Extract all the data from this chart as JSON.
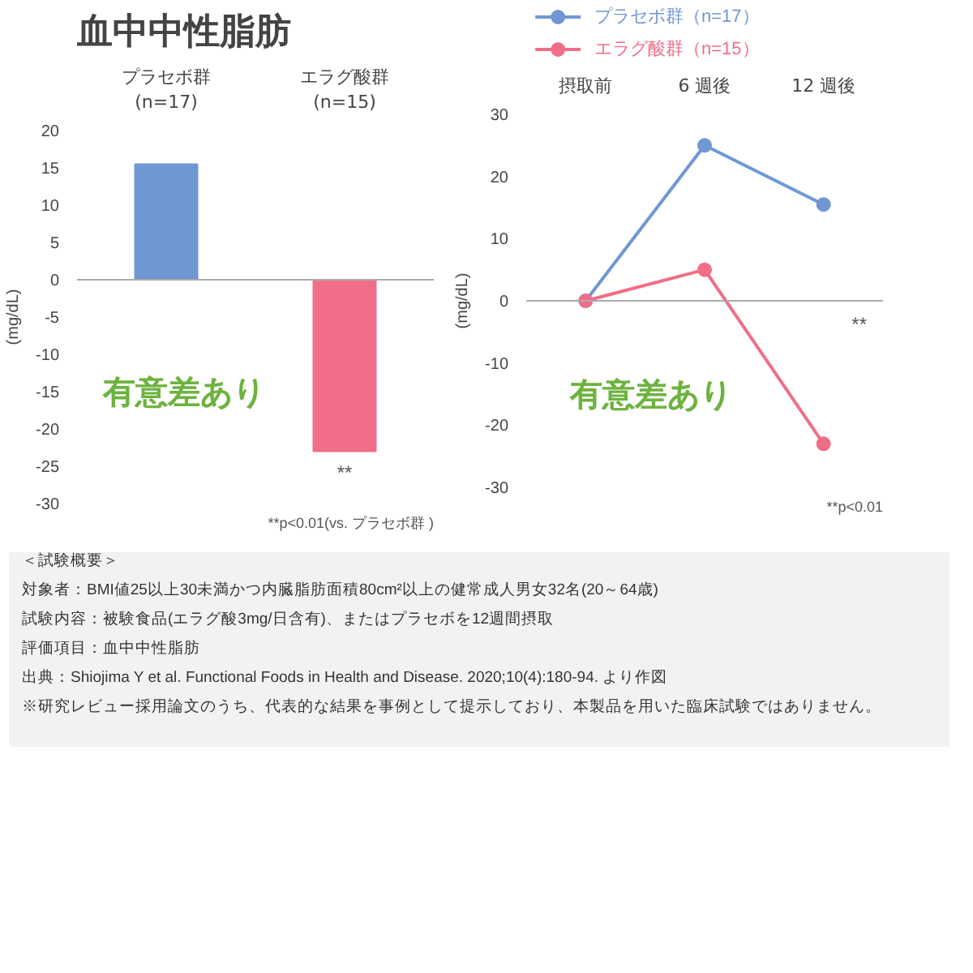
{
  "chart_data": [
    {
      "type": "bar",
      "title": "血中中性脂肪",
      "ylabel": "(mg/dL)",
      "categories": [
        "プラセボ群\n(n=17)",
        "エラグ酸群\n(n=15)"
      ],
      "values": [
        15.5,
        -23
      ],
      "colors": [
        "#6f97d3",
        "#f06e87"
      ],
      "ylim": [
        -30,
        20
      ],
      "yticks": [
        -30,
        -25,
        -20,
        -15,
        -10,
        -5,
        0,
        5,
        10,
        15,
        20
      ],
      "annotations": [
        "有意差あり",
        {
          "text": "**",
          "x": "エラグ酸群\n(n=15)",
          "y": -23
        },
        "**p<0.01(vs. プラセボ群 )"
      ]
    },
    {
      "type": "line",
      "ylabel": "(mg/dL)",
      "categories": [
        "摂取前",
        "6 週後",
        "12 週後"
      ],
      "series": [
        {
          "name": "プラセボ群（n=17）",
          "color": "#6f97d3",
          "values": [
            0,
            25,
            15.5
          ]
        },
        {
          "name": "エラグ酸群（n=15）",
          "color": "#f06e87",
          "values": [
            0,
            5,
            -23
          ]
        }
      ],
      "ylim": [
        -30,
        30
      ],
      "yticks": [
        -30,
        -20,
        -10,
        0,
        10,
        20,
        30
      ],
      "marker": "circle",
      "legend": "top left",
      "annotations": [
        "有意差あり",
        "**",
        "**p<0.01"
      ]
    },
    {
      "type": "other",
      "annotations": [
        "＜試験概要＞",
        "対象者：BMI値25以上30未満かつ内臓脂肪面積80cm²以上の健常成人男女32名(20～64歳)",
        "試験内容：被験食品(エラグ酸3mg/日含有)、またはプラセボを12週間摂取",
        "評価項目：血中中性脂肪",
        "出典：Shiojima Y et al. Functional Foods in Health and Disease. 2020;10(4):180-94. より作図",
        "※研究レビュー採用論文のうち、代表的な結果を事例として提示しており、本製品を用いた臨床試験ではありません。"
      ]
    }
  ]
}
